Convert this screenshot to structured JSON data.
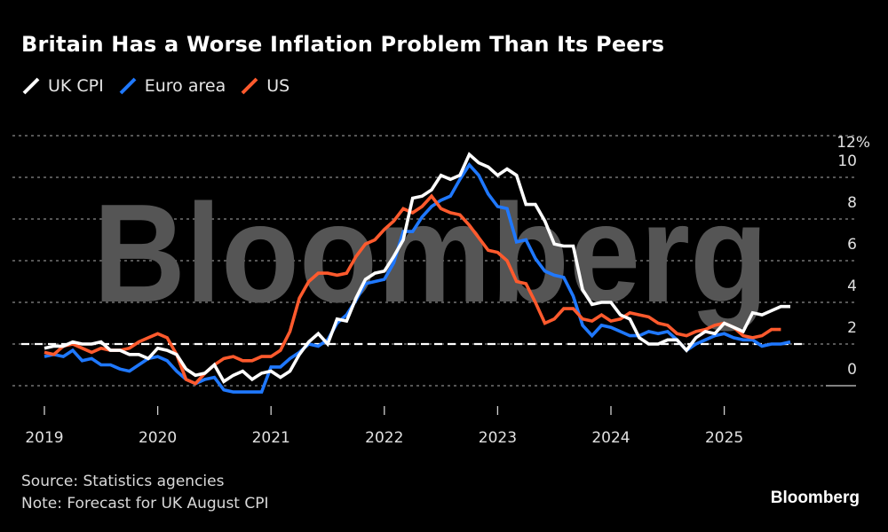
{
  "title": "Britain Has a Worse Inflation Problem Than Its Peers",
  "legend": [
    {
      "label": "UK CPI",
      "color": "#ffffff"
    },
    {
      "label": "Euro area",
      "color": "#1f78ff"
    },
    {
      "label": "US",
      "color": "#ff5a2d"
    }
  ],
  "footer": {
    "source": "Source: Statistics agencies",
    "note": "Note: Forecast for UK August CPI"
  },
  "brand": "Bloomberg",
  "watermark": "Bloomberg",
  "chart_data": {
    "type": "line",
    "title": "Britain Has a Worse Inflation Problem Than Its Peers",
    "xlabel": "",
    "ylabel": "",
    "x_start": "2019-01",
    "x_frequency": "monthly",
    "x_ticks": [
      "2019",
      "2020",
      "2021",
      "2022",
      "2023",
      "2024",
      "2025"
    ],
    "y_ticks": [
      "0",
      "2",
      "4",
      "6",
      "8",
      "10",
      "12%"
    ],
    "y_tick_values": [
      0,
      2,
      4,
      6,
      8,
      10,
      12
    ],
    "ylim": [
      -0.8,
      12
    ],
    "grid": true,
    "legend_position": "top-left",
    "reference_line": {
      "value": 2,
      "style": "dashed",
      "color": "#ffffff",
      "meaning": "2% target"
    },
    "series": [
      {
        "name": "UK CPI",
        "color": "#ffffff",
        "values": [
          1.8,
          1.9,
          1.9,
          2.1,
          2.0,
          2.0,
          2.1,
          1.7,
          1.7,
          1.5,
          1.5,
          1.3,
          1.8,
          1.7,
          1.5,
          0.8,
          0.5,
          0.6,
          1.0,
          0.2,
          0.5,
          0.7,
          0.3,
          0.6,
          0.7,
          0.4,
          0.7,
          1.5,
          2.1,
          2.5,
          2.0,
          3.2,
          3.1,
          4.2,
          5.1,
          5.4,
          5.5,
          6.2,
          7.0,
          9.0,
          9.1,
          9.4,
          10.1,
          9.9,
          10.1,
          11.1,
          10.7,
          10.5,
          10.1,
          10.4,
          10.1,
          8.7,
          8.7,
          7.9,
          6.8,
          6.7,
          6.7,
          4.6,
          3.9,
          4.0,
          4.0,
          3.4,
          3.2,
          2.3,
          2.0,
          2.0,
          2.2,
          2.2,
          1.7,
          2.3,
          2.6,
          2.5,
          3.0,
          2.8,
          2.6,
          3.5,
          3.4,
          3.6,
          3.8,
          3.8
        ]
      },
      {
        "name": "Euro area",
        "color": "#1f78ff",
        "values": [
          1.4,
          1.5,
          1.4,
          1.7,
          1.2,
          1.3,
          1.0,
          1.0,
          0.8,
          0.7,
          1.0,
          1.3,
          1.4,
          1.2,
          0.7,
          0.3,
          0.1,
          0.3,
          0.4,
          -0.2,
          -0.3,
          -0.3,
          -0.3,
          -0.3,
          0.9,
          0.9,
          1.3,
          1.6,
          2.0,
          1.9,
          2.2,
          3.0,
          3.4,
          4.1,
          4.9,
          5.0,
          5.1,
          5.9,
          7.4,
          7.4,
          8.1,
          8.6,
          8.9,
          9.1,
          9.9,
          10.6,
          10.1,
          9.2,
          8.6,
          8.5,
          6.9,
          7.0,
          6.1,
          5.5,
          5.3,
          5.2,
          4.3,
          2.9,
          2.4,
          2.9,
          2.8,
          2.6,
          2.4,
          2.4,
          2.6,
          2.5,
          2.6,
          2.2,
          1.7,
          2.0,
          2.2,
          2.4,
          2.5,
          2.3,
          2.2,
          2.2,
          1.9,
          2.0,
          2.0,
          2.1
        ]
      },
      {
        "name": "US",
        "color": "#ff5a2d",
        "values": [
          1.6,
          1.5,
          1.9,
          2.0,
          1.8,
          1.6,
          1.8,
          1.7,
          1.7,
          1.8,
          2.1,
          2.3,
          2.5,
          2.3,
          1.5,
          0.3,
          0.1,
          0.6,
          1.0,
          1.3,
          1.4,
          1.2,
          1.2,
          1.4,
          1.4,
          1.7,
          2.6,
          4.2,
          5.0,
          5.4,
          5.4,
          5.3,
          5.4,
          6.2,
          6.8,
          7.0,
          7.5,
          7.9,
          8.5,
          8.3,
          8.6,
          9.1,
          8.5,
          8.3,
          8.2,
          7.7,
          7.1,
          6.5,
          6.4,
          6.0,
          5.0,
          4.9,
          4.0,
          3.0,
          3.2,
          3.7,
          3.7,
          3.2,
          3.1,
          3.4,
          3.1,
          3.2,
          3.5,
          3.4,
          3.3,
          3.0,
          2.9,
          2.5,
          2.4,
          2.6,
          2.7,
          2.9,
          3.0,
          2.8,
          2.4,
          2.3,
          2.4,
          2.7,
          2.7
        ]
      }
    ]
  }
}
